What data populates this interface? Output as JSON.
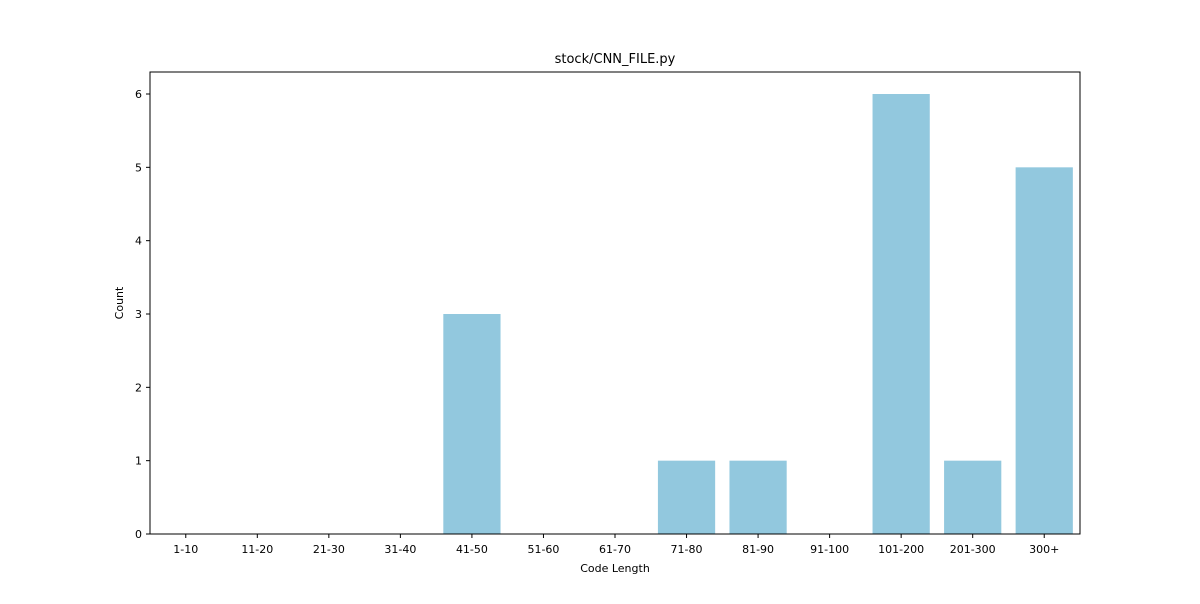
{
  "chart_data": {
    "type": "bar",
    "title": "stock/CNN_FILE.py",
    "xlabel": "Code Length",
    "ylabel": "Count",
    "categories": [
      "1-10",
      "11-20",
      "21-30",
      "31-40",
      "41-50",
      "51-60",
      "61-70",
      "71-80",
      "81-90",
      "91-100",
      "101-200",
      "201-300",
      "300+"
    ],
    "values": [
      0,
      0,
      0,
      0,
      3,
      0,
      0,
      1,
      1,
      0,
      6,
      1,
      5
    ],
    "yticks": [
      "0",
      "1",
      "2",
      "3",
      "4",
      "5",
      "6"
    ],
    "ylim": [
      0,
      6.3
    ],
    "grid": false,
    "legend": "none",
    "bar_color": "#92c8de"
  }
}
